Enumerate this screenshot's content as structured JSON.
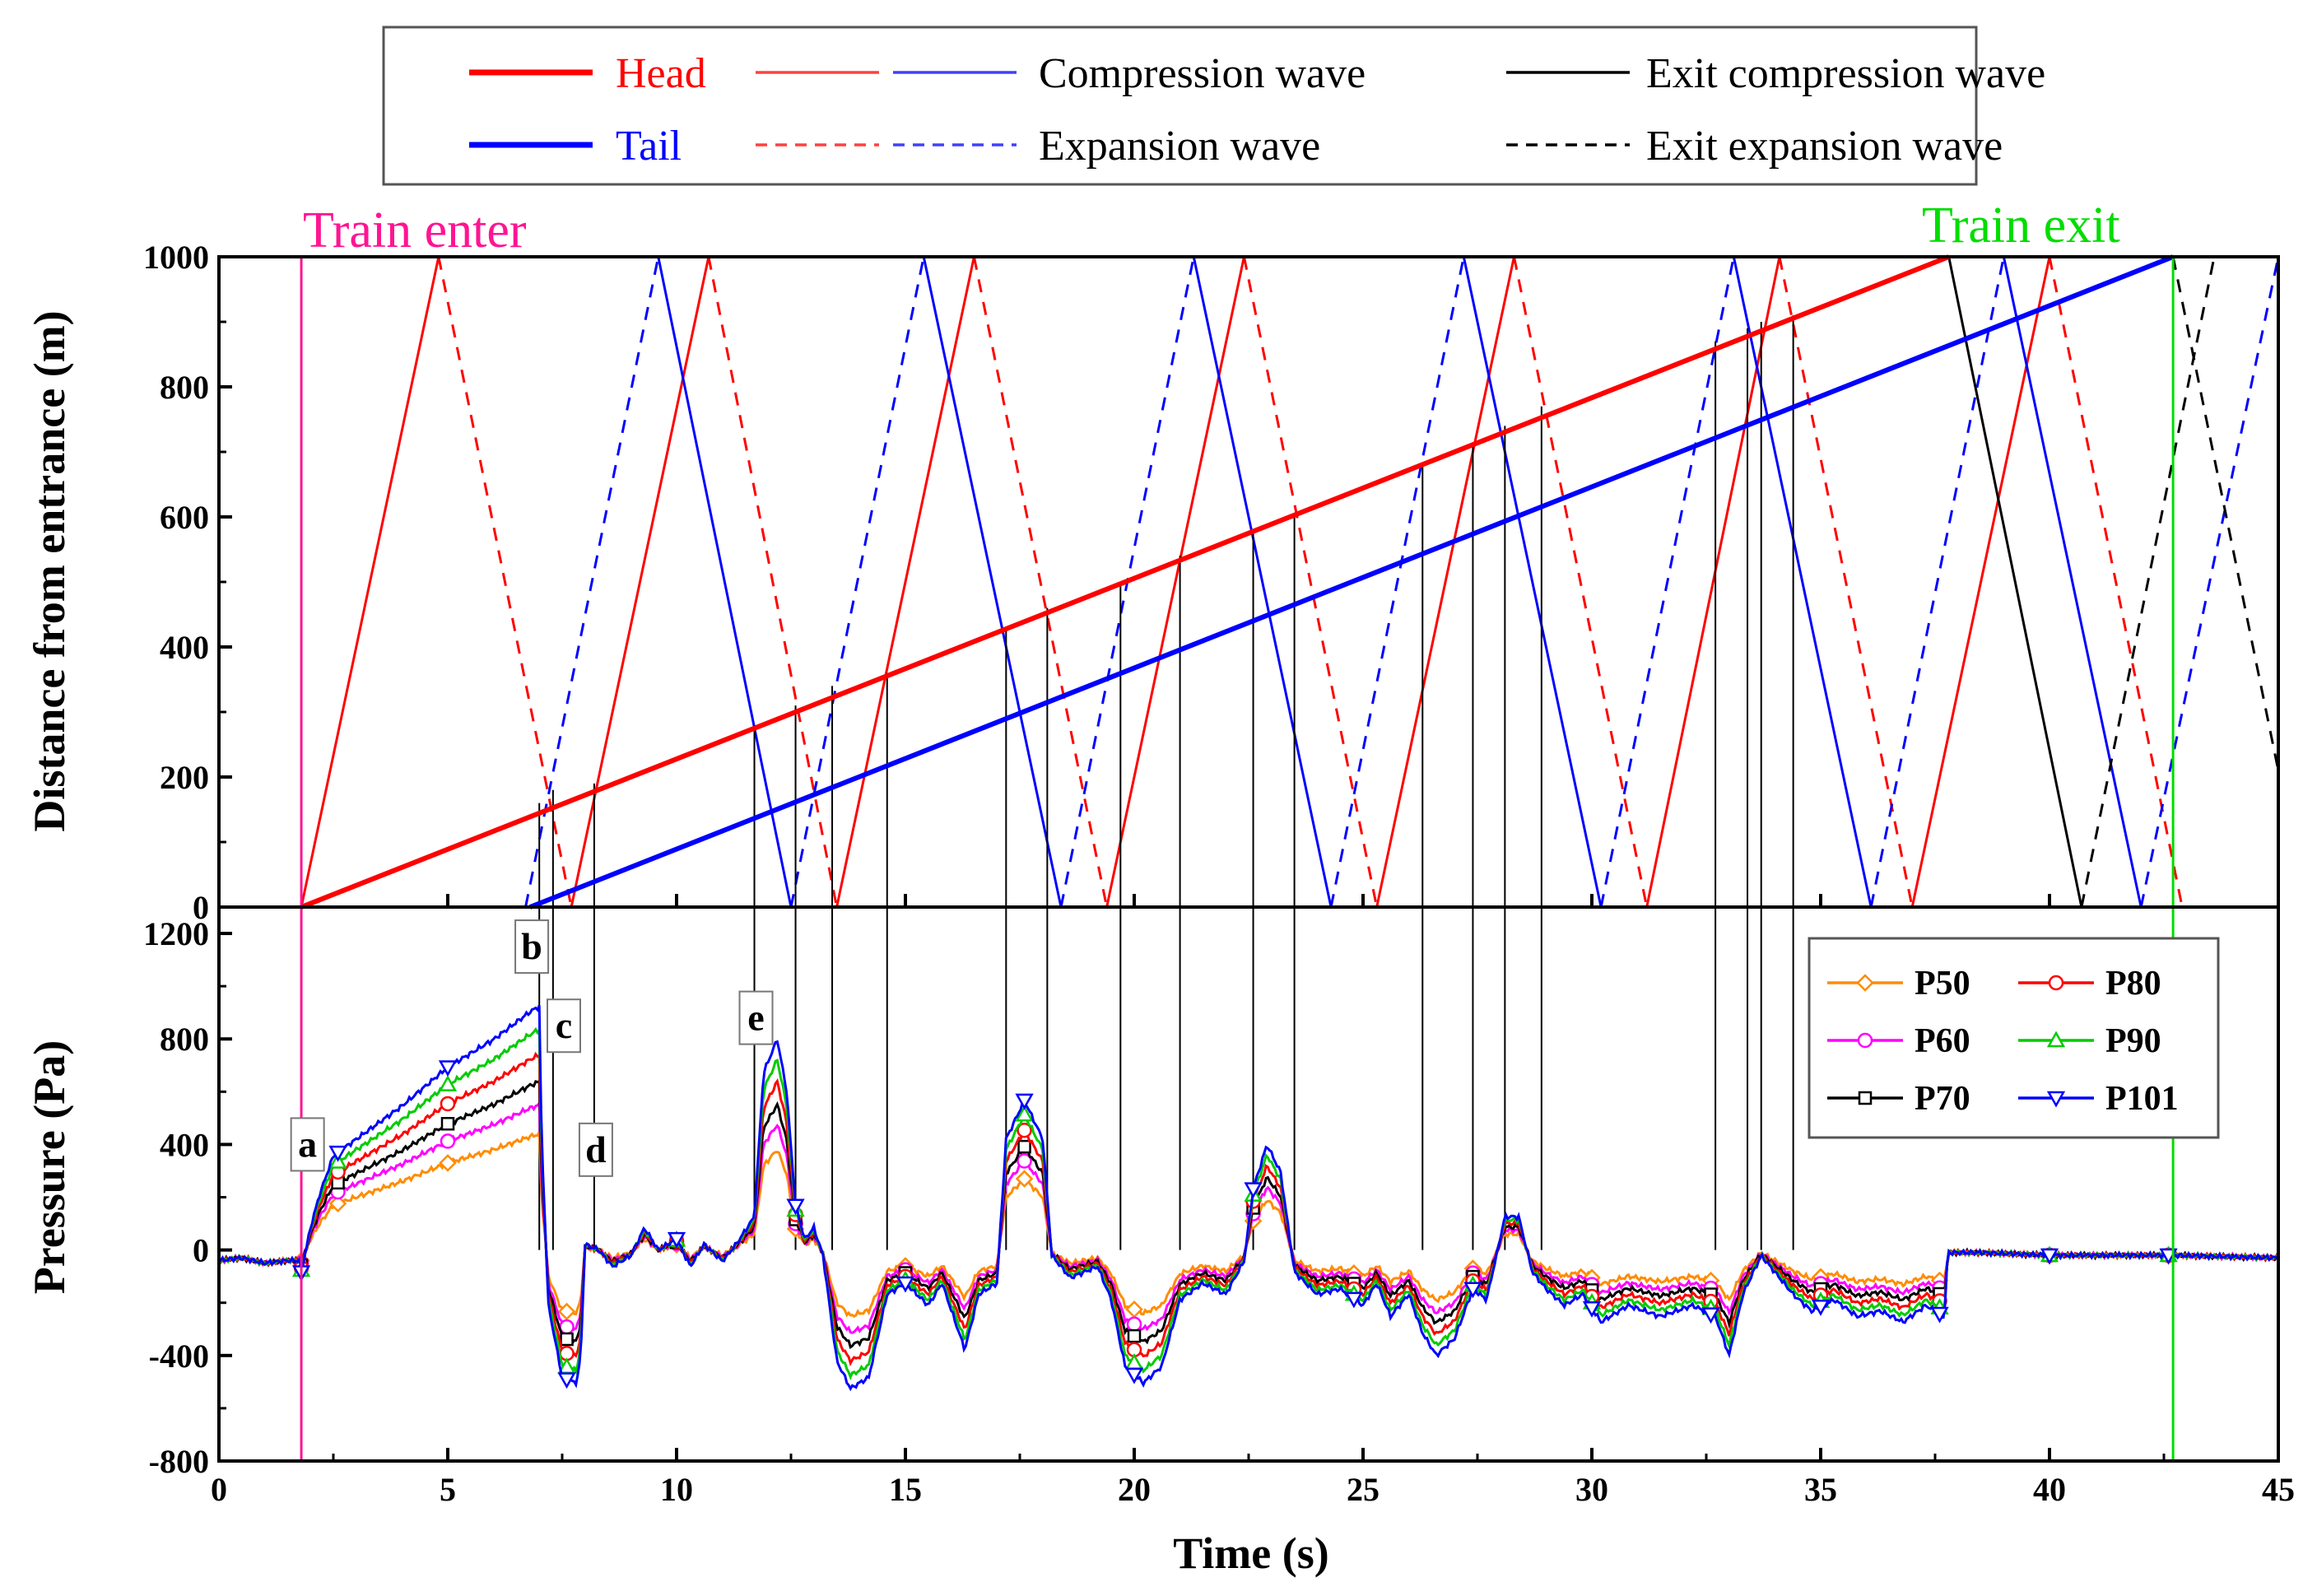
{
  "chart_data": [
    {
      "id": "wave_diagram",
      "type": "line",
      "xlabel": "Time (s)",
      "ylabel": "Distance from entrance (m)",
      "xlim": [
        0,
        45
      ],
      "ylim": [
        0,
        1000
      ],
      "yticks": [
        0,
        200,
        400,
        600,
        800,
        1000
      ],
      "legend": {
        "position": "top",
        "entries": [
          {
            "label": "Head",
            "color": "#ff0000",
            "style": "solid",
            "weight": "thick"
          },
          {
            "label": "Tail",
            "color": "#0000ff",
            "style": "solid",
            "weight": "thick"
          },
          {
            "label": "Compression wave",
            "color": "#ff4040",
            "color2": "#4040ff",
            "style": "solid"
          },
          {
            "label": "Expansion wave",
            "color": "#ff4040",
            "color2": "#4040ff",
            "style": "dashed"
          },
          {
            "label": "Exit compression wave",
            "color": "#000000",
            "style": "solid"
          },
          {
            "label": "Exit expansion wave",
            "color": "#000000",
            "style": "dashed"
          }
        ]
      },
      "events": [
        {
          "label": "Train enter",
          "t": 1.8,
          "color": "#ff1493"
        },
        {
          "label": "Train exit",
          "t": 42.7,
          "color": "#00dd00"
        }
      ],
      "series": [
        {
          "name": "Head",
          "color": "#ff0000",
          "points": [
            [
              1.8,
              0
            ],
            [
              37.8,
              1000
            ]
          ]
        },
        {
          "name": "Tail",
          "color": "#0000ff",
          "points": [
            [
              6.8,
              0
            ],
            [
              42.7,
              1000
            ]
          ]
        },
        {
          "name": "Head compression wave",
          "color": "#ff0000",
          "dashed": false,
          "segments": [
            [
              [
                1.8,
                0
              ],
              [
                4.8,
                1000
              ]
            ],
            [
              [
                7.7,
                0
              ],
              [
                10.7,
                1000
              ]
            ],
            [
              [
                13.5,
                0
              ],
              [
                16.5,
                1000
              ]
            ],
            [
              [
                19.4,
                0
              ],
              [
                22.4,
                1000
              ]
            ],
            [
              [
                25.3,
                0
              ],
              [
                28.3,
                1000
              ]
            ],
            [
              [
                31.2,
                0
              ],
              [
                34.1,
                1000
              ]
            ],
            [
              [
                37.0,
                0
              ],
              [
                40.0,
                1000
              ]
            ]
          ]
        },
        {
          "name": "Head expansion wave",
          "color": "#ff0000",
          "dashed": true,
          "segments": [
            [
              [
                4.8,
                1000
              ],
              [
                7.7,
                0
              ]
            ],
            [
              [
                10.7,
                1000
              ],
              [
                13.5,
                0
              ]
            ],
            [
              [
                16.5,
                1000
              ],
              [
                19.4,
                0
              ]
            ],
            [
              [
                22.4,
                1000
              ],
              [
                25.3,
                0
              ]
            ],
            [
              [
                28.3,
                1000
              ],
              [
                31.2,
                0
              ]
            ],
            [
              [
                34.1,
                1000
              ],
              [
                37.0,
                0
              ]
            ],
            [
              [
                40.0,
                1000
              ],
              [
                42.9,
                0
              ]
            ]
          ]
        },
        {
          "name": "Tail expansion wave",
          "color": "#0000ff",
          "dashed": true,
          "segments": [
            [
              [
                6.7,
                0
              ],
              [
                9.6,
                1000
              ]
            ],
            [
              [
                12.5,
                0
              ],
              [
                15.4,
                1000
              ]
            ],
            [
              [
                18.4,
                0
              ],
              [
                21.3,
                1000
              ]
            ],
            [
              [
                24.3,
                0
              ],
              [
                27.2,
                1000
              ]
            ],
            [
              [
                30.2,
                0
              ],
              [
                33.1,
                1000
              ]
            ],
            [
              [
                36.1,
                0
              ],
              [
                39.0,
                1000
              ]
            ],
            [
              [
                42.0,
                0
              ],
              [
                45.0,
                1000
              ]
            ]
          ]
        },
        {
          "name": "Tail compression wave",
          "color": "#0000ff",
          "dashed": false,
          "segments": [
            [
              [
                9.6,
                1000
              ],
              [
                12.5,
                0
              ]
            ],
            [
              [
                15.4,
                1000
              ],
              [
                18.4,
                0
              ]
            ],
            [
              [
                21.3,
                1000
              ],
              [
                24.3,
                0
              ]
            ],
            [
              [
                27.2,
                1000
              ],
              [
                30.2,
                0
              ]
            ],
            [
              [
                33.1,
                1000
              ],
              [
                36.1,
                0
              ]
            ],
            [
              [
                39.0,
                1000
              ],
              [
                42.0,
                0
              ]
            ]
          ]
        },
        {
          "name": "Exit compression wave",
          "color": "#000000",
          "dashed": false,
          "segments": [
            [
              [
                37.8,
                1000
              ],
              [
                40.7,
                0
              ]
            ]
          ]
        },
        {
          "name": "Exit expansion wave",
          "color": "#000000",
          "dashed": true,
          "segments": [
            [
              [
                42.7,
                1000
              ],
              [
                45.0,
                210
              ]
            ],
            [
              [
                40.7,
                0
              ],
              [
                43.6,
                1000
              ]
            ]
          ]
        }
      ],
      "connectors": [
        {
          "t": 7.0,
          "y": 160
        },
        {
          "t": 7.3,
          "y": 180
        },
        {
          "t": 8.2,
          "y": 190
        },
        {
          "t": 11.7,
          "y": 280
        },
        {
          "t": 12.6,
          "y": 310
        },
        {
          "t": 13.4,
          "y": 340
        },
        {
          "t": 14.6,
          "y": 360
        },
        {
          "t": 17.2,
          "y": 430
        },
        {
          "t": 18.1,
          "y": 460
        },
        {
          "t": 19.7,
          "y": 500
        },
        {
          "t": 21.0,
          "y": 540
        },
        {
          "t": 22.6,
          "y": 580
        },
        {
          "t": 23.5,
          "y": 600
        },
        {
          "t": 26.3,
          "y": 680
        },
        {
          "t": 27.4,
          "y": 710
        },
        {
          "t": 28.1,
          "y": 740
        },
        {
          "t": 28.9,
          "y": 770
        },
        {
          "t": 32.7,
          "y": 870
        },
        {
          "t": 33.4,
          "y": 890
        },
        {
          "t": 33.7,
          "y": 900
        },
        {
          "t": 34.4,
          "y": 910
        }
      ]
    },
    {
      "id": "pressure",
      "type": "line",
      "xlabel": "Time (s)",
      "ylabel": "Pressure (Pa)",
      "xlim": [
        0,
        45
      ],
      "ylim": [
        -800,
        1300
      ],
      "xticks": [
        0,
        5,
        10,
        15,
        20,
        25,
        30,
        35,
        40,
        45
      ],
      "yticks": [
        -800,
        -400,
        0,
        400,
        800,
        1200
      ],
      "legend": {
        "position": "top-right"
      },
      "annotations": [
        {
          "label": "a",
          "t": 1.9,
          "p": 400
        },
        {
          "label": "b",
          "t": 6.8,
          "p": 1150
        },
        {
          "label": "c",
          "t": 7.5,
          "p": 850
        },
        {
          "label": "d",
          "t": 8.2,
          "p": 380
        },
        {
          "label": "e",
          "t": 11.7,
          "p": 880
        }
      ],
      "base_curve": [
        [
          0,
          -40
        ],
        [
          0.5,
          -30
        ],
        [
          1,
          -50
        ],
        [
          1.5,
          -40
        ],
        [
          1.8,
          -40
        ],
        [
          2.0,
          40
        ],
        [
          2.2,
          100
        ],
        [
          2.5,
          170
        ],
        [
          3.0,
          200
        ],
        [
          4.0,
          260
        ],
        [
          5.0,
          330
        ],
        [
          6.0,
          380
        ],
        [
          6.8,
          430
        ],
        [
          7.0,
          440
        ],
        [
          7.05,
          200
        ],
        [
          7.2,
          -100
        ],
        [
          7.5,
          -230
        ],
        [
          7.8,
          -240
        ],
        [
          7.9,
          -200
        ],
        [
          8.0,
          10
        ],
        [
          8.3,
          0
        ],
        [
          8.6,
          -30
        ],
        [
          9.0,
          -10
        ],
        [
          9.3,
          40
        ],
        [
          9.6,
          0
        ],
        [
          10.0,
          20
        ],
        [
          10.3,
          -30
        ],
        [
          10.6,
          10
        ],
        [
          11.0,
          -20
        ],
        [
          11.3,
          10
        ],
        [
          11.7,
          60
        ],
        [
          11.9,
          320
        ],
        [
          12.2,
          380
        ],
        [
          12.4,
          290
        ],
        [
          12.6,
          80
        ],
        [
          12.8,
          20
        ],
        [
          13.0,
          40
        ],
        [
          13.2,
          -10
        ],
        [
          13.5,
          -200
        ],
        [
          13.8,
          -250
        ],
        [
          14.2,
          -230
        ],
        [
          14.6,
          -80
        ],
        [
          15.0,
          -60
        ],
        [
          15.5,
          -100
        ],
        [
          15.8,
          -60
        ],
        [
          16.3,
          -180
        ],
        [
          16.6,
          -80
        ],
        [
          17.0,
          -60
        ],
        [
          17.2,
          200
        ],
        [
          17.6,
          270
        ],
        [
          18.0,
          200
        ],
        [
          18.2,
          -10
        ],
        [
          18.6,
          -50
        ],
        [
          19.2,
          -30
        ],
        [
          19.5,
          -90
        ],
        [
          19.8,
          -210
        ],
        [
          20.2,
          -240
        ],
        [
          20.6,
          -210
        ],
        [
          21.0,
          -90
        ],
        [
          21.5,
          -60
        ],
        [
          22.0,
          -80
        ],
        [
          22.4,
          -20
        ],
        [
          22.6,
          110
        ],
        [
          22.9,
          190
        ],
        [
          23.2,
          140
        ],
        [
          23.5,
          -40
        ],
        [
          24.0,
          -80
        ],
        [
          24.5,
          -70
        ],
        [
          25.0,
          -100
        ],
        [
          25.3,
          -60
        ],
        [
          25.6,
          -120
        ],
        [
          26.0,
          -80
        ],
        [
          26.3,
          -150
        ],
        [
          26.6,
          -190
        ],
        [
          27.0,
          -160
        ],
        [
          27.4,
          -70
        ],
        [
          27.7,
          -90
        ],
        [
          28.1,
          60
        ],
        [
          28.4,
          60
        ],
        [
          28.7,
          -40
        ],
        [
          29.0,
          -70
        ],
        [
          29.4,
          -100
        ],
        [
          29.8,
          -80
        ],
        [
          30.2,
          -130
        ],
        [
          30.8,
          -100
        ],
        [
          31.5,
          -120
        ],
        [
          32.2,
          -100
        ],
        [
          32.7,
          -120
        ],
        [
          33.0,
          -190
        ],
        [
          33.3,
          -80
        ],
        [
          33.7,
          -10
        ],
        [
          34.0,
          -40
        ],
        [
          34.4,
          -80
        ],
        [
          34.8,
          -110
        ],
        [
          35.3,
          -90
        ],
        [
          35.8,
          -120
        ],
        [
          36.3,
          -110
        ],
        [
          36.8,
          -130
        ],
        [
          37.3,
          -100
        ],
        [
          37.7,
          -120
        ],
        [
          37.8,
          -10
        ],
        [
          38.5,
          -10
        ],
        [
          40.0,
          -20
        ],
        [
          42.7,
          -20
        ],
        [
          45.0,
          -30
        ]
      ],
      "series": [
        {
          "name": "P50",
          "color": "#ff8c00",
          "marker": "diamond",
          "scale": 1.0
        },
        {
          "name": "P60",
          "color": "#ff00ff",
          "marker": "circle",
          "scale": 1.25
        },
        {
          "name": "P70",
          "color": "#000000",
          "marker": "square",
          "scale": 1.45
        },
        {
          "name": "P80",
          "color": "#ff0000",
          "marker": "circle",
          "scale": 1.68
        },
        {
          "name": "P90",
          "color": "#00cc00",
          "marker": "triangle-up",
          "scale": 1.9
        },
        {
          "name": "P101",
          "color": "#0000ff",
          "marker": "triangle-down",
          "scale": 2.1
        }
      ]
    }
  ]
}
